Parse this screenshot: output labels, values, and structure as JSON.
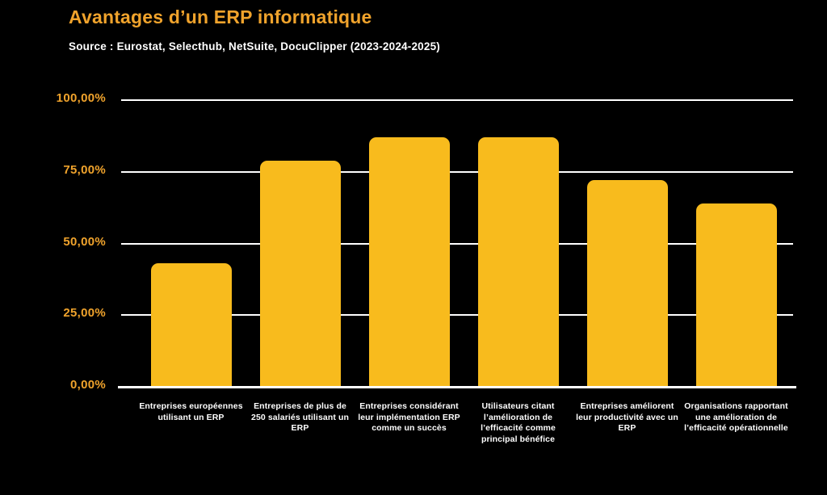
{
  "colors": {
    "background": "#000000",
    "accent_orange": "#F0A32C",
    "bar_yellow": "#F8BB1D",
    "grid_white": "#FFFFFF",
    "text_white": "#FFFFFF"
  },
  "chart_data": {
    "type": "bar",
    "title": "Avantages d’un ERP informatique",
    "source": "Source : Eurostat, Selecthub, NetSuite, DocuClipper (2023-2024-2025)",
    "categories": [
      "Entreprises européennes utilisant un ERP",
      "Entreprises de plus de 250 salariés utilisant un ERP",
      "Entreprises considérant leur implémentation ERP comme un succès",
      "Utilisateurs citant l’amélioration de l’efficacité comme principal bénéfice",
      "Entreprises améliorent leur productivité avec un ERP",
      "Organisations rapportant une amélioration de l’efficacité opérationnelle"
    ],
    "values": [
      43,
      79,
      87,
      87,
      72,
      64
    ],
    "unit": "%",
    "xlabel": "",
    "ylabel": "",
    "ylim": [
      0,
      100
    ],
    "y_ticks": [
      {
        "value": 0,
        "label": "0,00%"
      },
      {
        "value": 25,
        "label": "25,00%"
      },
      {
        "value": 50,
        "label": "50,00%"
      },
      {
        "value": 75,
        "label": "75,00%"
      },
      {
        "value": 100,
        "label": "100,00%"
      }
    ],
    "grid": true,
    "legend": false,
    "bar_color": "#F8BB1D"
  }
}
